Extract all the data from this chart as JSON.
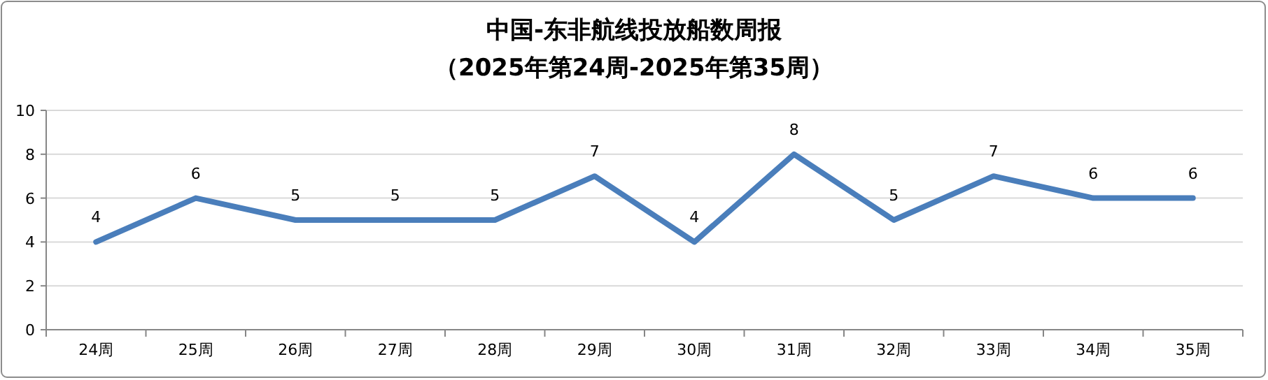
{
  "chart_data": {
    "type": "line",
    "title": "中国-东非航线投放船数周报",
    "subtitle": "（2025年第24周-2025年第35周）",
    "categories": [
      "24周",
      "25周",
      "26周",
      "27周",
      "28周",
      "29周",
      "30周",
      "31周",
      "32周",
      "33周",
      "34周",
      "35周"
    ],
    "series": [
      {
        "color": "#4a7ebb",
        "values": [
          4,
          6,
          5,
          5,
          5,
          7,
          4,
          8,
          5,
          7,
          6,
          6
        ]
      }
    ],
    "ylim": [
      0,
      10
    ],
    "yticks": [
      0,
      2,
      4,
      6,
      8,
      10
    ],
    "grid": "y",
    "data_labels": true
  }
}
